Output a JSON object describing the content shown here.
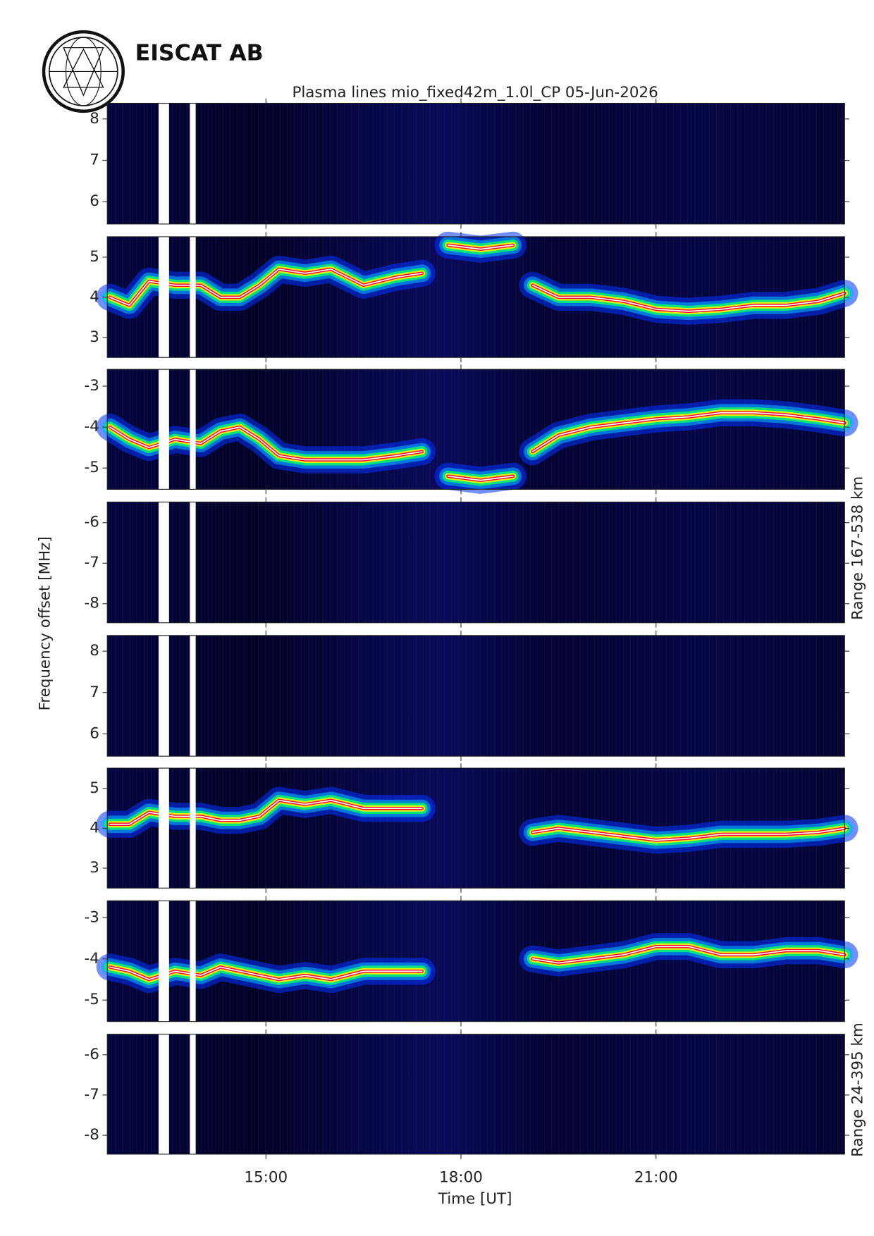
{
  "brand": "EISCAT AB",
  "title": "Plasma lines   mio_fixed42m_1.0l_CP  05-Jun-2026",
  "y_label": "Frequency offset [MHz]",
  "x_label": "Time [UT]",
  "range_labels": [
    "Range 167-538 km",
    "Range 24-395 km"
  ],
  "data_gaps": [
    [
      13.35,
      13.51
    ],
    [
      13.83,
      13.92
    ]
  ],
  "chart_data": [
    {
      "type": "spectrogram",
      "xlim": [
        12.56,
        23.9
      ],
      "xticks": [
        15,
        18,
        21
      ],
      "ylim": [
        5.46,
        8.38
      ],
      "yticks": [
        6,
        7,
        8
      ]
    },
    {
      "type": "spectrogram",
      "xlim": [
        12.56,
        23.9
      ],
      "xticks": [
        15,
        18,
        21
      ],
      "ylim": [
        2.5,
        5.51
      ],
      "yticks": [
        3,
        4,
        5
      ],
      "x": [
        12.6,
        12.9,
        13.2,
        13.6,
        14.0,
        14.3,
        14.6,
        14.9,
        15.2,
        15.6,
        16.0,
        16.5,
        17.0,
        17.4,
        17.75,
        17.8,
        18.3,
        18.8,
        18.9,
        19.1,
        19.5,
        20.0,
        20.5,
        21.0,
        21.5,
        22.0,
        22.5,
        23.0,
        23.5,
        23.9
      ],
      "values": [
        4.0,
        3.8,
        4.4,
        4.3,
        4.3,
        4.0,
        4.0,
        4.3,
        4.7,
        4.6,
        4.7,
        4.3,
        4.5,
        4.6,
        null,
        5.3,
        5.2,
        5.3,
        null,
        4.3,
        4.0,
        4.0,
        3.9,
        3.7,
        3.65,
        3.7,
        3.8,
        3.8,
        3.9,
        4.1
      ]
    },
    {
      "type": "spectrogram",
      "xlim": [
        12.56,
        23.9
      ],
      "xticks": [
        15,
        18,
        21
      ],
      "ylim": [
        -5.52,
        -2.59
      ],
      "yticks": [
        -5,
        -4,
        -3
      ],
      "x": [
        12.6,
        12.9,
        13.2,
        13.6,
        14.0,
        14.3,
        14.6,
        14.9,
        15.2,
        15.6,
        16.0,
        16.5,
        17.0,
        17.4,
        17.75,
        17.8,
        18.3,
        18.8,
        18.9,
        19.1,
        19.5,
        20.0,
        20.5,
        21.0,
        21.5,
        22.0,
        22.5,
        23.0,
        23.5,
        23.9
      ],
      "values": [
        -4.0,
        -4.3,
        -4.5,
        -4.3,
        -4.4,
        -4.1,
        -4.0,
        -4.3,
        -4.7,
        -4.8,
        -4.8,
        -4.8,
        -4.7,
        -4.6,
        null,
        -5.2,
        -5.3,
        -5.2,
        null,
        -4.6,
        -4.2,
        -4.0,
        -3.9,
        -3.8,
        -3.75,
        -3.65,
        -3.65,
        -3.7,
        -3.8,
        -3.9
      ]
    },
    {
      "type": "spectrogram",
      "xlim": [
        12.56,
        23.9
      ],
      "xticks": [
        15,
        18,
        21
      ],
      "ylim": [
        -8.47,
        -5.49
      ],
      "yticks": [
        -8,
        -7,
        -6
      ]
    },
    {
      "type": "spectrogram",
      "xlim": [
        12.56,
        23.9
      ],
      "xticks": [
        15,
        18,
        21
      ],
      "ylim": [
        5.46,
        8.38
      ],
      "yticks": [
        6,
        7,
        8
      ]
    },
    {
      "type": "spectrogram",
      "xlim": [
        12.56,
        23.9
      ],
      "xticks": [
        15,
        18,
        21
      ],
      "ylim": [
        2.5,
        5.51
      ],
      "yticks": [
        3,
        4,
        5
      ],
      "x": [
        12.6,
        12.9,
        13.2,
        13.6,
        14.0,
        14.3,
        14.6,
        14.9,
        15.2,
        15.6,
        16.0,
        16.5,
        17.0,
        17.4,
        17.75,
        17.8,
        18.3,
        18.8,
        18.9,
        19.1,
        19.5,
        20.0,
        20.5,
        21.0,
        21.5,
        22.0,
        22.5,
        23.0,
        23.5,
        23.9
      ],
      "values": [
        4.1,
        4.1,
        4.4,
        4.3,
        4.3,
        4.2,
        4.2,
        4.3,
        4.7,
        4.6,
        4.7,
        4.5,
        4.5,
        4.5,
        null,
        null,
        null,
        null,
        null,
        3.9,
        4.0,
        3.9,
        3.8,
        3.7,
        3.75,
        3.85,
        3.85,
        3.85,
        3.9,
        4.0
      ]
    },
    {
      "type": "spectrogram",
      "xlim": [
        12.56,
        23.9
      ],
      "xticks": [
        15,
        18,
        21
      ],
      "ylim": [
        -5.52,
        -2.59
      ],
      "yticks": [
        -5,
        -4,
        -3
      ],
      "x": [
        12.6,
        12.9,
        13.2,
        13.6,
        14.0,
        14.3,
        14.6,
        14.9,
        15.2,
        15.6,
        16.0,
        16.5,
        17.0,
        17.4,
        17.75,
        17.8,
        18.3,
        18.8,
        18.9,
        19.1,
        19.5,
        20.0,
        20.5,
        21.0,
        21.5,
        22.0,
        22.5,
        23.0,
        23.5,
        23.9
      ],
      "values": [
        -4.2,
        -4.3,
        -4.5,
        -4.3,
        -4.4,
        -4.2,
        -4.3,
        -4.4,
        -4.5,
        -4.4,
        -4.5,
        -4.3,
        -4.3,
        -4.3,
        null,
        null,
        null,
        null,
        null,
        -4.0,
        -4.1,
        -4.0,
        -3.9,
        -3.7,
        -3.7,
        -3.9,
        -3.9,
        -3.8,
        -3.8,
        -3.9
      ]
    },
    {
      "type": "spectrogram",
      "xlim": [
        12.56,
        23.9
      ],
      "ylim": [
        -8.47,
        -5.49
      ],
      "yticks": [
        -8,
        -7,
        -6
      ],
      "xticks": [
        {
          "value": 15,
          "label": "15:00"
        },
        {
          "value": 18,
          "label": "18:00"
        },
        {
          "value": 21,
          "label": "21:00"
        }
      ]
    }
  ]
}
